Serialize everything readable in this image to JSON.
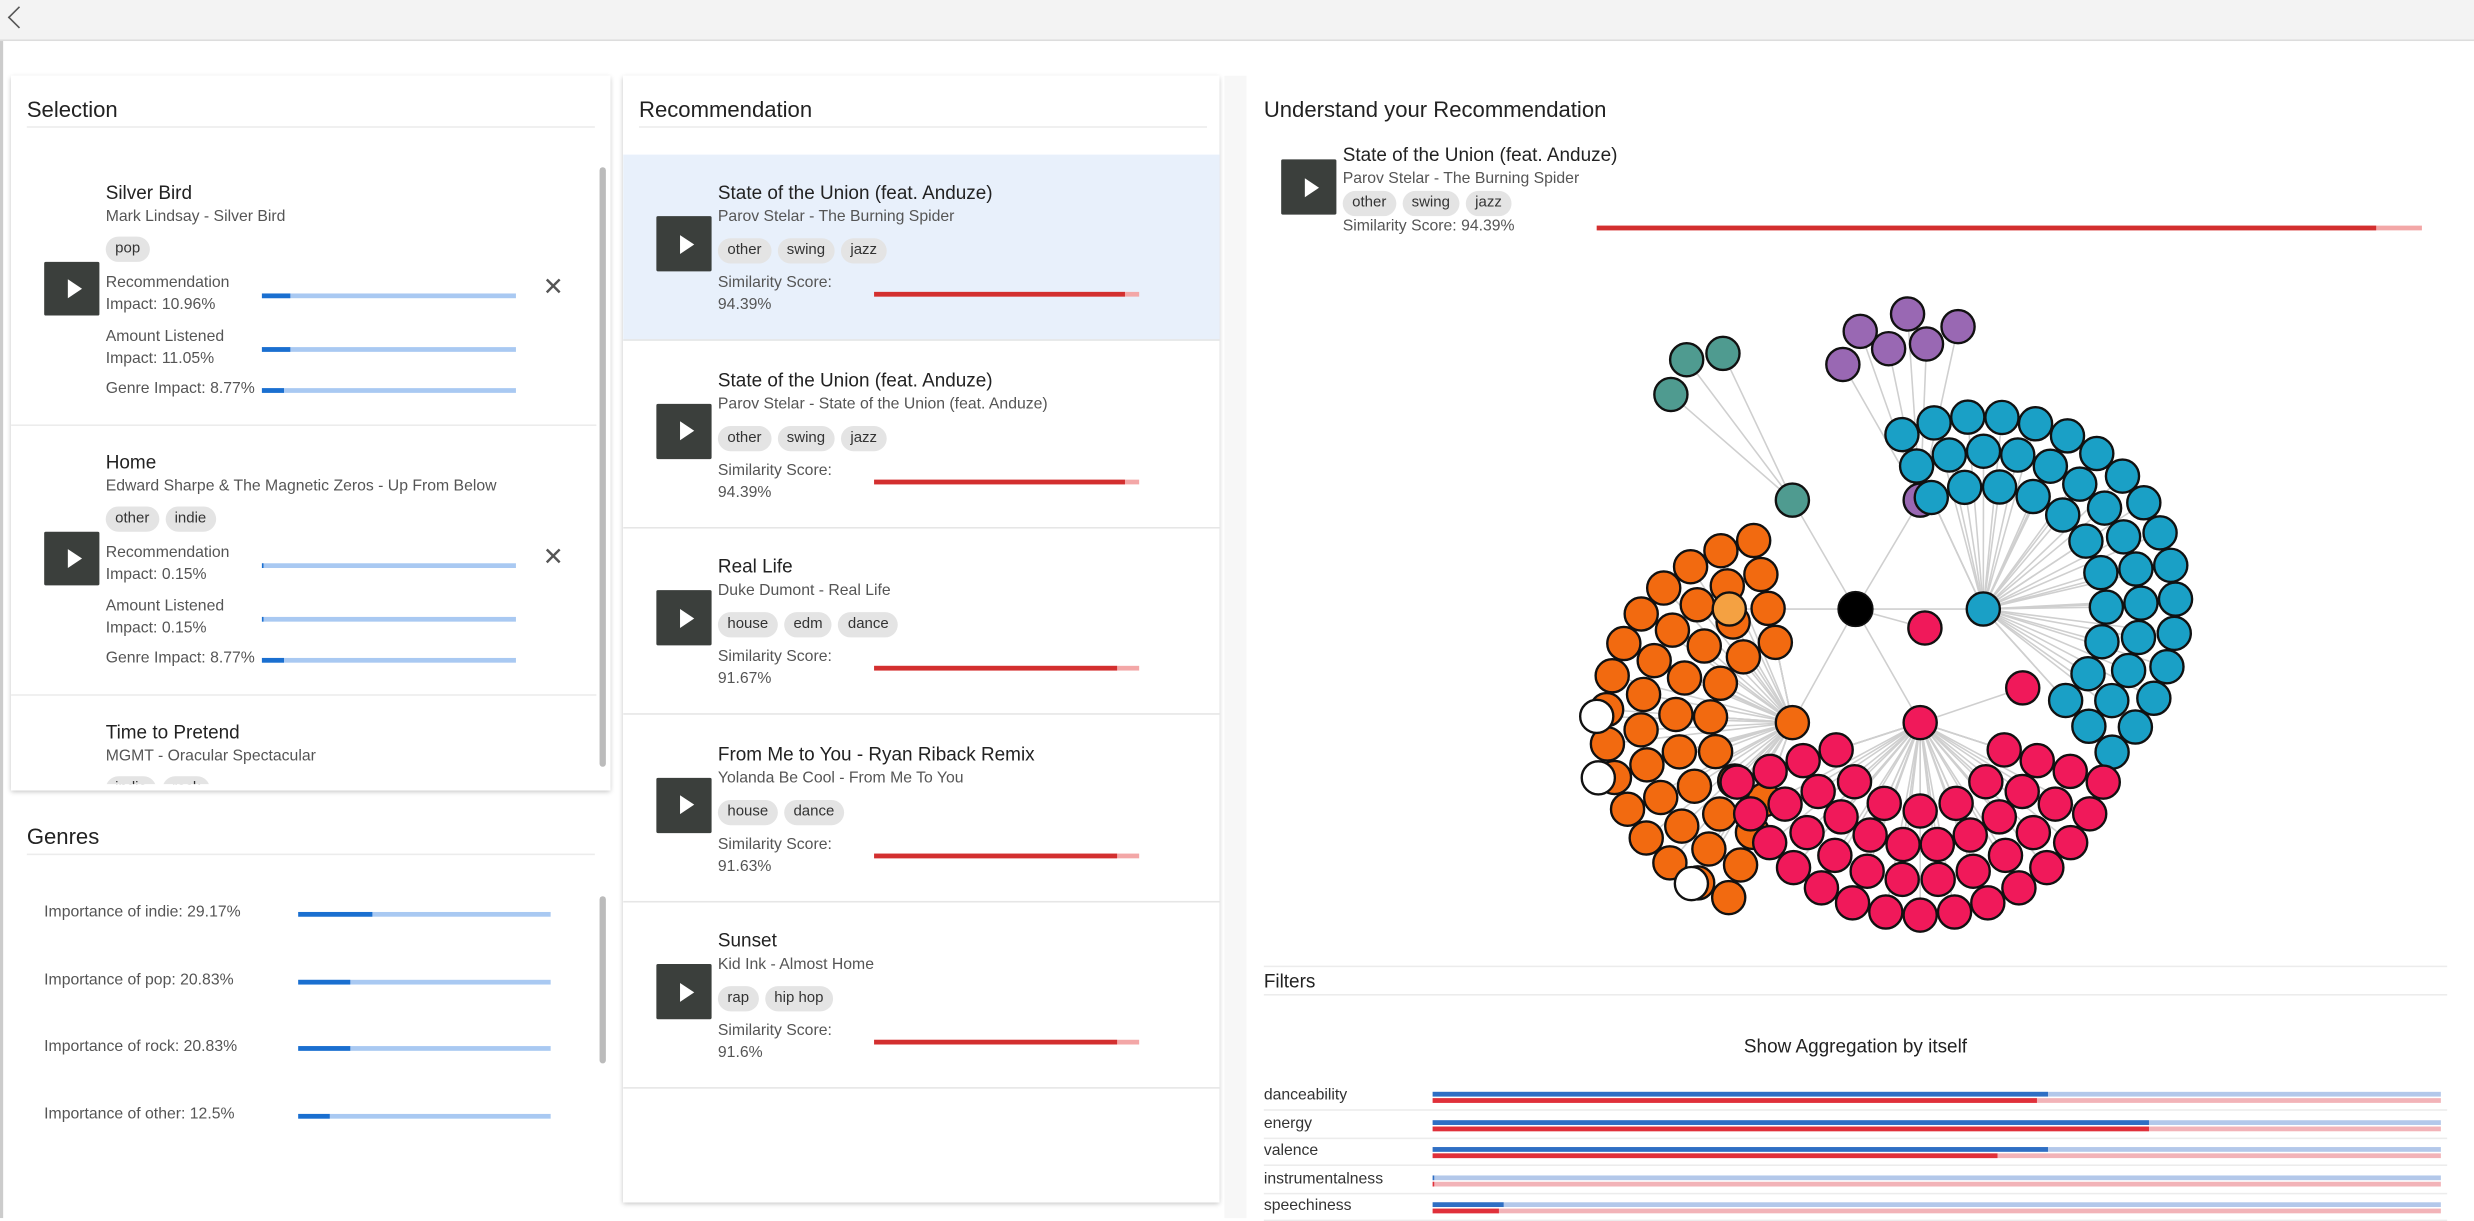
{
  "selection": {
    "title": "Selection",
    "items": [
      {
        "title": "Silver Bird",
        "subtitle": "Mark Lindsay - Silver Bird",
        "tags": [
          "pop"
        ],
        "metrics": [
          {
            "label": "Recommendation Impact: 10.96%",
            "value": 10.96
          },
          {
            "label": "Amount Listened Impact: 11.05%",
            "value": 11.05
          },
          {
            "label": "Genre Impact: 8.77%",
            "value": 8.77
          }
        ]
      },
      {
        "title": "Home",
        "subtitle": "Edward Sharpe & The Magnetic Zeros - Up From Below",
        "tags": [
          "other",
          "indie"
        ],
        "metrics": [
          {
            "label": "Recommendation Impact: 0.15%",
            "value": 0.15
          },
          {
            "label": "Amount Listened Impact: 0.15%",
            "value": 0.15
          },
          {
            "label": "Genre Impact: 8.77%",
            "value": 8.77
          }
        ]
      },
      {
        "title": "Time to Pretend",
        "subtitle": "MGMT - Oracular Spectacular",
        "tags": [
          "indie",
          "rock"
        ],
        "metrics": []
      }
    ]
  },
  "genres": {
    "title": "Genres",
    "rows": [
      {
        "label": "Importance of indie: 29.17%",
        "value": 29.17
      },
      {
        "label": "Importance of pop: 20.83%",
        "value": 20.83
      },
      {
        "label": "Importance of rock: 20.83%",
        "value": 20.83
      },
      {
        "label": "Importance of other: 12.5%",
        "value": 12.5
      }
    ]
  },
  "recommendation": {
    "title": "Recommendation",
    "items": [
      {
        "title": "State of the Union (feat. Anduze)",
        "subtitle": "Parov Stelar - The Burning Spider",
        "tags": [
          "other",
          "swing",
          "jazz"
        ],
        "score_label": "Similarity Score: 94.39%",
        "score": 94.39
      },
      {
        "title": "State of the Union (feat. Anduze)",
        "subtitle": "Parov Stelar - State of the Union (feat. Anduze)",
        "tags": [
          "other",
          "swing",
          "jazz"
        ],
        "score_label": "Similarity Score: 94.39%",
        "score": 94.39
      },
      {
        "title": "Real Life",
        "subtitle": "Duke Dumont - Real Life",
        "tags": [
          "house",
          "edm",
          "dance"
        ],
        "score_label": "Similarity Score: 91.67%",
        "score": 91.67
      },
      {
        "title": "From Me to You - Ryan Riback Remix",
        "subtitle": "Yolanda Be Cool - From Me To You",
        "tags": [
          "house",
          "dance"
        ],
        "score_label": "Similarity Score: 91.63%",
        "score": 91.63
      },
      {
        "title": "Sunset",
        "subtitle": "Kid Ink - Almost Home",
        "tags": [
          "rap",
          "hip hop"
        ],
        "score_label": "Similarity Score: 91.6%",
        "score": 91.6
      }
    ]
  },
  "understand": {
    "title": "Understand your Recommendation",
    "song": {
      "title": "State of the Union (feat. Anduze)",
      "subtitle": "Parov Stelar - The Burning Spider",
      "tags": [
        "other",
        "swing",
        "jazz"
      ],
      "score_label": "Similarity Score: 94.39%",
      "score": 94.39
    },
    "filters": {
      "title": "Filters",
      "toggle": "Show Aggregation by itself",
      "features": [
        {
          "name": "danceability",
          "bars": [
            {
              "color": "#2f6fc4",
              "value": 0.61
            },
            {
              "color": "#e0303a",
              "value": 0.6
            }
          ]
        },
        {
          "name": "energy",
          "bars": [
            {
              "color": "#2f6fc4",
              "value": 0.71
            },
            {
              "color": "#e0303a",
              "value": 0.71
            }
          ]
        },
        {
          "name": "valence",
          "bars": [
            {
              "color": "#2f6fc4",
              "value": 0.61
            },
            {
              "color": "#e0303a",
              "value": 0.56
            }
          ]
        },
        {
          "name": "instrumentalness",
          "bars": [
            {
              "color": "#2f6fc4",
              "value": 0.002
            },
            {
              "color": "#e0303a",
              "value": 0.001
            }
          ]
        },
        {
          "name": "speechiness",
          "bars": [
            {
              "color": "#2f6fc4",
              "value": 0.07
            },
            {
              "color": "#e0303a",
              "value": 0.065
            }
          ]
        }
      ]
    }
  }
}
